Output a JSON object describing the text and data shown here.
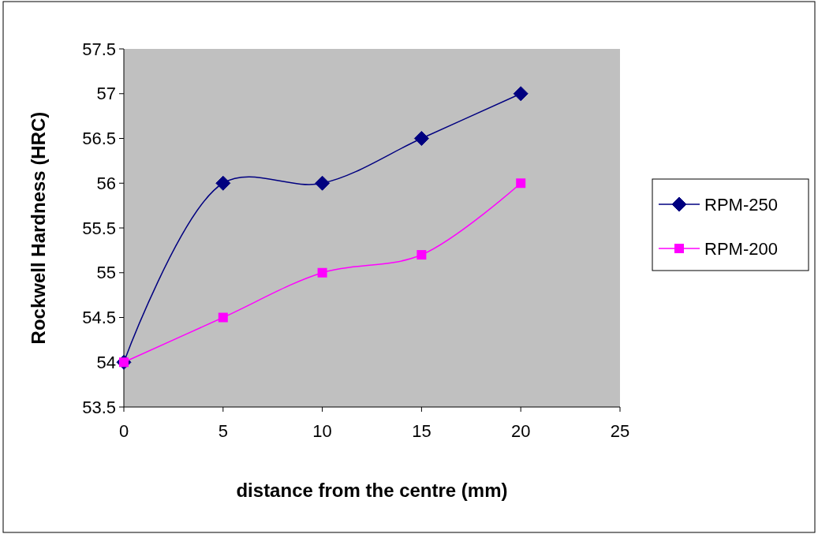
{
  "chart_data": {
    "type": "line",
    "xlabel": "distance from the centre (mm)",
    "ylabel": "Rockwell Hardness (HRC)",
    "x": [
      0,
      5,
      10,
      15,
      20
    ],
    "series": [
      {
        "name": "RPM-250",
        "color": "#000080",
        "values": [
          54,
          56,
          56,
          56.5,
          57
        ],
        "marker": "diamond"
      },
      {
        "name": "RPM-200",
        "color": "#ff00ff",
        "values": [
          54,
          54.5,
          55,
          55.2,
          56
        ],
        "marker": "square"
      }
    ],
    "xlim": [
      0,
      25
    ],
    "xticks": [
      0,
      5,
      10,
      15,
      20,
      25
    ],
    "ylim": [
      53.5,
      57.5
    ],
    "yticks": [
      53.5,
      54,
      54.5,
      55,
      55.5,
      56,
      56.5,
      57,
      57.5
    ],
    "grid": false,
    "legend": "right",
    "line_style": "solid"
  }
}
